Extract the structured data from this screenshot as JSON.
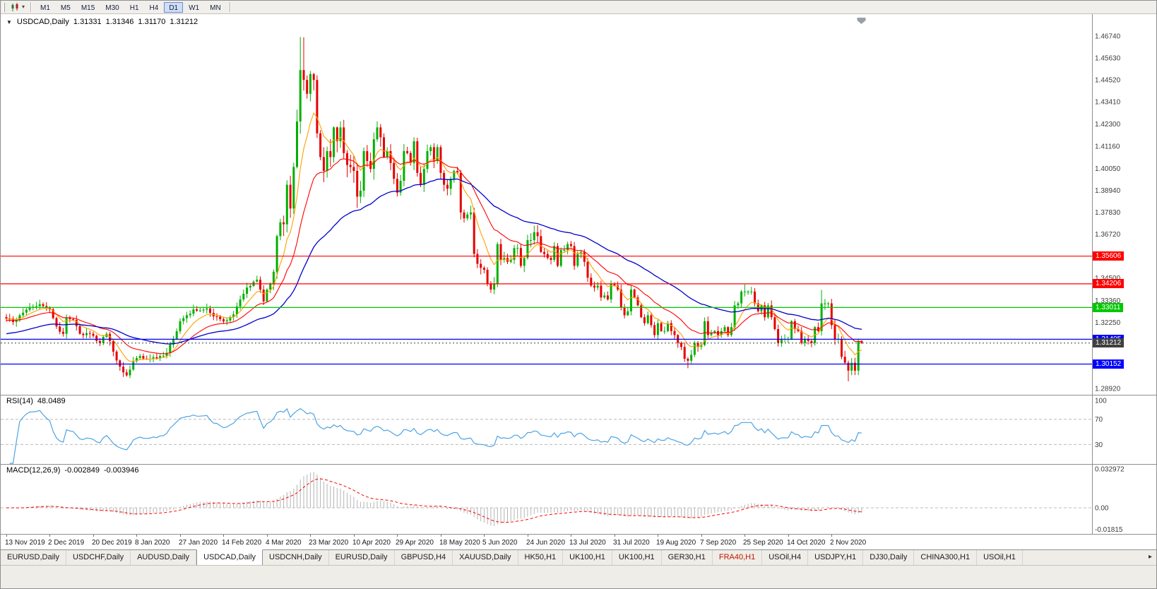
{
  "toolbar": {
    "timeframes": [
      "M1",
      "M5",
      "M15",
      "M30",
      "H1",
      "H4",
      "D1",
      "W1",
      "MN"
    ],
    "active_timeframe": "D1"
  },
  "chart_header": {
    "symbol_period": "USDCAD,Daily",
    "open": "1.31331",
    "high": "1.31346",
    "low": "1.31170",
    "close": "1.31212"
  },
  "indicators": {
    "rsi": {
      "label": "RSI(14)",
      "value": "48.0489"
    },
    "macd": {
      "label": "MACD(12,26,9)",
      "value": "-0.002849",
      "signal_value": "-0.003946"
    }
  },
  "price_axis": {
    "ticks": [
      "1.46740",
      "1.45630",
      "1.44520",
      "1.43410",
      "1.42300",
      "1.41160",
      "1.40050",
      "1.38940",
      "1.37830",
      "1.36720",
      "1.34500",
      "1.33360",
      "1.32250",
      "1.28920"
    ]
  },
  "levels": [
    {
      "price": 1.35606,
      "label": "1.35606",
      "color": "#FF0000",
      "style": "solid"
    },
    {
      "price": 1.34206,
      "label": "1.34206",
      "color": "#FF0000",
      "style": "solid"
    },
    {
      "price": 1.33011,
      "label": "1.33011",
      "color": "#00C800",
      "style": "solid"
    },
    {
      "price": 1.31405,
      "label": "1.31405",
      "color": "#0000FF",
      "style": "solid"
    },
    {
      "price": 1.31212,
      "label": "1.31212",
      "color": "#3F3F3F",
      "style": "dotted"
    },
    {
      "price": 1.30152,
      "label": "1.30152",
      "color": "#0000FF",
      "style": "solid"
    }
  ],
  "time_axis": {
    "bars_per_label": 13,
    "labels": [
      "13 Nov 2019",
      "2 Dec 2019",
      "20 Dec 2019",
      "8 Jan 2020",
      "27 Jan 2020",
      "14 Feb 2020",
      "4 Mar 2020",
      "23 Mar 2020",
      "10 Apr 2020",
      "29 Apr 2020",
      "18 May 2020",
      "5 Jun 2020",
      "24 Jun 2020",
      "13 Jul 2020",
      "31 Jul 2020",
      "19 Aug 2020",
      "7 Sep 2020",
      "25 Sep 2020",
      "14 Oct 2020",
      "2 Nov 2020"
    ]
  },
  "bottom_tabs": [
    {
      "label": "EURUSD,Daily"
    },
    {
      "label": "USDCHF,Daily"
    },
    {
      "label": "AUDUSD,Daily"
    },
    {
      "label": "USDCAD,Daily",
      "active": true
    },
    {
      "label": "USDCNH,Daily"
    },
    {
      "label": "EURUSD,Daily"
    },
    {
      "label": "GBPUSD,H4"
    },
    {
      "label": "XAUUSD,Daily"
    },
    {
      "label": "HK50,H1"
    },
    {
      "label": "UK100,H1"
    },
    {
      "label": "UK100,H1"
    },
    {
      "label": "GER30,H1"
    },
    {
      "label": "FRA40,H1",
      "color": "red"
    },
    {
      "label": "USOil,H4"
    },
    {
      "label": "USDJPY,H1"
    },
    {
      "label": "DJ30,Daily"
    },
    {
      "label": "CHINA300,H1"
    },
    {
      "label": "USOil,H1"
    }
  ],
  "colors": {
    "bull_candle": "#00B000",
    "bear_candle": "#E60000",
    "rsi_line": "#4DA3E3",
    "macd_histogram": "#B4B4B4",
    "macd_signal": "#FF0000"
  },
  "chart_data": {
    "type": "candlestick",
    "symbol": "USDCAD",
    "timeframe": "Daily",
    "current_bar": {
      "open": 1.31331,
      "high": 1.31346,
      "low": 1.3117,
      "close": 1.31212
    },
    "bars_count": 257,
    "price_ylim": [
      1.28597,
      1.47847
    ],
    "close_waypoints": [
      [
        0,
        1.3245
      ],
      [
        2,
        1.3228
      ],
      [
        4,
        1.3262
      ],
      [
        6,
        1.329
      ],
      [
        8,
        1.3305
      ],
      [
        10,
        1.3318
      ],
      [
        12,
        1.33
      ],
      [
        13,
        1.3292
      ],
      [
        15,
        1.3205
      ],
      [
        17,
        1.3168
      ],
      [
        18,
        1.3252
      ],
      [
        20,
        1.3238
      ],
      [
        22,
        1.3168
      ],
      [
        24,
        1.3172
      ],
      [
        26,
        1.3158
      ],
      [
        28,
        1.3122
      ],
      [
        30,
        1.3168
      ],
      [
        32,
        1.3078
      ],
      [
        34,
        1.3002
      ],
      [
        36,
        1.2958
      ],
      [
        38,
        1.303
      ],
      [
        40,
        1.3056
      ],
      [
        43,
        1.3042
      ],
      [
        46,
        1.3056
      ],
      [
        48,
        1.3072
      ],
      [
        50,
        1.3142
      ],
      [
        52,
        1.3232
      ],
      [
        54,
        1.3262
      ],
      [
        56,
        1.3292
      ],
      [
        58,
        1.3286
      ],
      [
        60,
        1.3296
      ],
      [
        62,
        1.3256
      ],
      [
        64,
        1.3242
      ],
      [
        66,
        1.3236
      ],
      [
        68,
        1.3266
      ],
      [
        70,
        1.3342
      ],
      [
        72,
        1.3402
      ],
      [
        74,
        1.3432
      ],
      [
        75,
        1.3442
      ],
      [
        76,
        1.3392
      ],
      [
        77,
        1.3332
      ],
      [
        78,
        1.3392
      ],
      [
        79,
        1.3422
      ],
      [
        80,
        1.3482
      ],
      [
        81,
        1.3662
      ],
      [
        82,
        1.3732
      ],
      [
        83,
        1.3722
      ],
      [
        84,
        1.3922
      ],
      [
        85,
        1.3802
      ],
      [
        86,
        1.4012
      ],
      [
        87,
        1.4242
      ],
      [
        88,
        1.4502
      ],
      [
        89,
        1.4452
      ],
      [
        90,
        1.4382
      ],
      [
        91,
        1.4482
      ],
      [
        92,
        1.4452
      ],
      [
        93,
        1.4182
      ],
      [
        94,
        1.4062
      ],
      [
        95,
        1.3992
      ],
      [
        96,
        1.4092
      ],
      [
        97,
        1.4062
      ],
      [
        98,
        1.4212
      ],
      [
        99,
        1.4142
      ],
      [
        100,
        1.4212
      ],
      [
        101,
        1.4082
      ],
      [
        102,
        1.4022
      ],
      [
        103,
        1.4012
      ],
      [
        104,
        1.3992
      ],
      [
        105,
        1.3862
      ],
      [
        106,
        1.3892
      ],
      [
        107,
        1.4092
      ],
      [
        108,
        1.4042
      ],
      [
        109,
        1.4002
      ],
      [
        110,
        1.4152
      ],
      [
        111,
        1.4212
      ],
      [
        112,
        1.4162
      ],
      [
        113,
        1.4062
      ],
      [
        114,
        1.4092
      ],
      [
        115,
        1.4032
      ],
      [
        116,
        1.3952
      ],
      [
        117,
        1.3882
      ],
      [
        118,
        1.3942
      ],
      [
        119,
        1.4092
      ],
      [
        120,
        1.4082
      ],
      [
        121,
        1.4032
      ],
      [
        122,
        1.4142
      ],
      [
        123,
        1.3982
      ],
      [
        124,
        1.3922
      ],
      [
        125,
        1.4002
      ],
      [
        126,
        1.4092
      ],
      [
        127,
        1.4112
      ],
      [
        128,
        1.4042
      ],
      [
        129,
        1.4112
      ],
      [
        130,
        1.3982
      ],
      [
        131,
        1.3922
      ],
      [
        132,
        1.3902
      ],
      [
        133,
        1.3952
      ],
      [
        134,
        1.3992
      ],
      [
        135,
        1.3982
      ],
      [
        136,
        1.3782
      ],
      [
        137,
        1.3752
      ],
      [
        138,
        1.3772
      ],
      [
        139,
        1.3782
      ],
      [
        140,
        1.3572
      ],
      [
        141,
        1.3522
      ],
      [
        142,
        1.3502
      ],
      [
        143,
        1.3492
      ],
      [
        144,
        1.3422
      ],
      [
        145,
        1.3392
      ],
      [
        146,
        1.3422
      ],
      [
        147,
        1.3622
      ],
      [
        148,
        1.3542
      ],
      [
        149,
        1.3552
      ],
      [
        150,
        1.3532
      ],
      [
        151,
        1.3542
      ],
      [
        152,
        1.3602
      ],
      [
        153,
        1.3602
      ],
      [
        154,
        1.3512
      ],
      [
        155,
        1.3552
      ],
      [
        156,
        1.3642
      ],
      [
        157,
        1.3642
      ],
      [
        158,
        1.3682
      ],
      [
        159,
        1.3662
      ],
      [
        160,
        1.3582
      ],
      [
        161,
        1.3572
      ],
      [
        162,
        1.3552
      ],
      [
        163,
        1.3542
      ],
      [
        164,
        1.3612
      ],
      [
        165,
        1.3512
      ],
      [
        166,
        1.3592
      ],
      [
        167,
        1.3592
      ],
      [
        168,
        1.3622
      ],
      [
        169,
        1.3612
      ],
      [
        170,
        1.3512
      ],
      [
        171,
        1.3572
      ],
      [
        172,
        1.3582
      ],
      [
        173,
        1.3532
      ],
      [
        174,
        1.3452
      ],
      [
        175,
        1.3412
      ],
      [
        176,
        1.3402
      ],
      [
        177,
        1.3412
      ],
      [
        178,
        1.3352
      ],
      [
        179,
        1.3362
      ],
      [
        180,
        1.3342
      ],
      [
        181,
        1.3422
      ],
      [
        182,
        1.3412
      ],
      [
        183,
        1.3392
      ],
      [
        184,
        1.3302
      ],
      [
        185,
        1.3262
      ],
      [
        186,
        1.3282
      ],
      [
        187,
        1.3392
      ],
      [
        188,
        1.3352
      ],
      [
        189,
        1.3312
      ],
      [
        190,
        1.3252
      ],
      [
        191,
        1.3222
      ],
      [
        192,
        1.3262
      ],
      [
        193,
        1.3212
      ],
      [
        194,
        1.3162
      ],
      [
        195,
        1.3222
      ],
      [
        196,
        1.3182
      ],
      [
        197,
        1.3182
      ],
      [
        198,
        1.3222
      ],
      [
        199,
        1.3182
      ],
      [
        200,
        1.3162
      ],
      [
        201,
        1.3122
      ],
      [
        202,
        1.3102
      ],
      [
        203,
        1.3042
      ],
      [
        204,
        1.3032
      ],
      [
        205,
        1.3062
      ],
      [
        206,
        1.3122
      ],
      [
        207,
        1.3102
      ],
      [
        208,
        1.3112
      ],
      [
        209,
        1.3232
      ],
      [
        210,
        1.3162
      ],
      [
        211,
        1.3172
      ],
      [
        212,
        1.3182
      ],
      [
        213,
        1.3162
      ],
      [
        214,
        1.3182
      ],
      [
        215,
        1.3202
      ],
      [
        216,
        1.3162
      ],
      [
        217,
        1.3202
      ],
      [
        218,
        1.3312
      ],
      [
        219,
        1.3322
      ],
      [
        220,
        1.3382
      ],
      [
        221,
        1.3382
      ],
      [
        222,
        1.3382
      ],
      [
        223,
        1.3382
      ],
      [
        224,
        1.3322
      ],
      [
        225,
        1.3282
      ],
      [
        226,
        1.3312
      ],
      [
        227,
        1.3252
      ],
      [
        228,
        1.3312
      ],
      [
        229,
        1.3252
      ],
      [
        230,
        1.3192
      ],
      [
        231,
        1.3122
      ],
      [
        232,
        1.3142
      ],
      [
        233,
        1.3142
      ],
      [
        234,
        1.3142
      ],
      [
        235,
        1.3232
      ],
      [
        236,
        1.3192
      ],
      [
        237,
        1.3182
      ],
      [
        238,
        1.3122
      ],
      [
        239,
        1.3142
      ],
      [
        240,
        1.3132
      ],
      [
        241,
        1.3122
      ],
      [
        242,
        1.3202
      ],
      [
        243,
        1.3182
      ],
      [
        244,
        1.3322
      ],
      [
        245,
        1.3322
      ],
      [
        246,
        1.3322
      ],
      [
        247,
        1.3212
      ],
      [
        248,
        1.3142
      ],
      [
        249,
        1.3142
      ],
      [
        250,
        1.3052
      ],
      [
        251,
        1.3022
      ],
      [
        252,
        1.2982
      ],
      [
        253,
        1.3022
      ],
      [
        254,
        1.2982
      ],
      [
        255,
        1.3132
      ],
      [
        256,
        1.31212
      ]
    ],
    "bar_overrides": {
      "36": {
        "l": 1.2952
      },
      "88": {
        "h": 1.4669
      },
      "89": {
        "h": 1.4668
      },
      "147": {
        "h": 1.3632
      },
      "158": {
        "h": 1.3715
      },
      "204": {
        "l": 1.2994
      },
      "221": {
        "h": 1.3418
      },
      "244": {
        "h": 1.339
      },
      "252": {
        "l": 1.2928
      },
      "256": {
        "o": 1.31331,
        "h": 1.31346,
        "l": 1.3117,
        "c": 1.31212
      }
    },
    "moving_averages": [
      {
        "name": "ma-fast",
        "period": 8,
        "seed": 1.3245,
        "color": "#FFA000",
        "width": 1.1
      },
      {
        "name": "ma-medium",
        "period": 20,
        "seed": 1.3235,
        "color": "#FF0000",
        "width": 1.1
      },
      {
        "name": "ma-slow",
        "period": 50,
        "seed": 1.3165,
        "color": "#0000CD",
        "width": 1.3
      }
    ],
    "rsi": {
      "period": 14,
      "levels": [
        70,
        30
      ],
      "ticks": [
        "100",
        "70",
        "30"
      ],
      "range_top": 109,
      "range_bottom": -1
    },
    "macd": {
      "fast": 12,
      "slow": 26,
      "signal": 9,
      "ticks": [
        {
          "label": "0.032972",
          "value": 0.032972
        },
        {
          "label": "0.00",
          "value": 0
        },
        {
          "label": "-0.01815",
          "value": -0.01815
        }
      ]
    }
  }
}
